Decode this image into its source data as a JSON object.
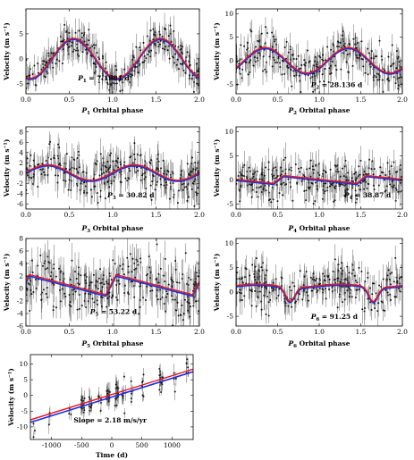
{
  "chart_data": [
    {
      "id": "p1",
      "type": "scatter",
      "ylabel": "Velocity  (m s⁻¹)",
      "xlabel": "P1 Orbital phase",
      "xlabel_main": "P",
      "xlabel_sub": "1",
      "xlabel_rest": "  Orbital  phase",
      "annotation_main": "P",
      "annotation_sub": "1",
      "annotation_rest": " = 7.1981 d",
      "xlim": [
        0,
        2
      ],
      "ylim": [
        -7,
        10
      ],
      "xticks": [
        0.0,
        0.5,
        1.0,
        1.5,
        2.0
      ],
      "yticks": [
        -5,
        0,
        5
      ],
      "model": {
        "shape": "sin",
        "amplitude": 4.0,
        "offset": 0.0,
        "phase": 0.3
      },
      "scatter_sd": 1.7,
      "n_points": 150
    },
    {
      "id": "p2",
      "type": "scatter",
      "ylabel": "Velocity  (m s⁻¹)",
      "xlabel": "P2 Orbital phase",
      "xlabel_main": "P",
      "xlabel_sub": "2",
      "xlabel_rest": "  Orbital  phase",
      "annotation_main": "P",
      "annotation_sub": "2",
      "annotation_rest": " = 28.136 d",
      "xlim": [
        0,
        2
      ],
      "ylim": [
        -7,
        11
      ],
      "xticks": [
        0.0,
        0.5,
        1.0,
        1.5,
        2.0
      ],
      "yticks": [
        -5,
        0,
        5,
        10
      ],
      "model": {
        "shape": "sin",
        "amplitude": 2.7,
        "offset": 0.0,
        "phase": 0.1
      },
      "scatter_sd": 2.0,
      "n_points": 150
    },
    {
      "id": "p3",
      "type": "scatter",
      "ylabel": "Velocity  (m s⁻¹)",
      "xlabel": "P3 Orbital phase",
      "xlabel_main": "P",
      "xlabel_sub": "3",
      "xlabel_rest": "  Orbital  phase",
      "annotation_main": "P",
      "annotation_sub": "3",
      "annotation_rest": " = 30.82 d",
      "xlim": [
        0,
        2
      ],
      "ylim": [
        -7,
        9
      ],
      "xticks": [
        0.0,
        0.5,
        1.0,
        1.5,
        2.0
      ],
      "yticks": [
        -6,
        -4,
        -2,
        0,
        2,
        4,
        6,
        8
      ],
      "model": {
        "shape": "sin",
        "amplitude": 1.5,
        "offset": 0.0,
        "phase": 0.0
      },
      "scatter_sd": 2.0,
      "n_points": 150
    },
    {
      "id": "p4",
      "type": "scatter",
      "ylabel": "Velocity  (m s⁻¹)",
      "xlabel": "P4 Orbital phase",
      "xlabel_main": "P",
      "xlabel_sub": "4",
      "xlabel_rest": "  Orbital  phase",
      "annotation_main": "P",
      "annotation_sub": "4",
      "annotation_rest": " = 38.87 d",
      "xlim": [
        0,
        2
      ],
      "ylim": [
        -6,
        11
      ],
      "xticks": [
        0.0,
        0.5,
        1.0,
        1.5,
        2.0
      ],
      "yticks": [
        -5,
        0,
        5,
        10
      ],
      "model": {
        "shape": "sawtooth",
        "amplitude": 1.0,
        "offset": 0.0,
        "phase": 0.45
      },
      "scatter_sd": 2.0,
      "n_points": 150
    },
    {
      "id": "p5",
      "type": "scatter",
      "ylabel": "Velocity  (m s⁻¹)",
      "xlabel": "P5 Orbital phase",
      "xlabel_main": "P",
      "xlabel_sub": "5",
      "xlabel_rest": "  Orbital  phase",
      "annotation_main": "P",
      "annotation_sub": "5",
      "annotation_rest": " = 53.22 d",
      "xlim": [
        0,
        2
      ],
      "ylim": [
        -6,
        8
      ],
      "xticks": [
        0.0,
        0.5,
        1.0,
        1.5,
        2.0
      ],
      "yticks": [
        -6,
        -4,
        -2,
        0,
        2,
        4,
        6,
        8
      ],
      "model": {
        "shape": "sawtooth",
        "amplitude": 2.0,
        "offset": 0.5,
        "phase": 0.92
      },
      "scatter_sd": 2.0,
      "n_points": 150
    },
    {
      "id": "p6",
      "type": "scatter",
      "ylabel": "Velocity  (m s⁻¹)",
      "xlabel": "P6 Orbital phase",
      "xlabel_main": "P",
      "xlabel_sub": "6",
      "xlabel_rest": "  Orbital  phase",
      "annotation_main": "P",
      "annotation_sub": "6",
      "annotation_rest": " = 91.25 d",
      "xlim": [
        0,
        2
      ],
      "ylim": [
        -7,
        11
      ],
      "xticks": [
        0.0,
        0.5,
        1.0,
        1.5,
        2.0
      ],
      "yticks": [
        -5,
        0,
        5,
        10
      ],
      "model": {
        "shape": "dip",
        "amplitude": 3.0,
        "offset": 1.2,
        "phase": 0.65
      },
      "scatter_sd": 2.0,
      "n_points": 150
    },
    {
      "id": "trend",
      "type": "scatter",
      "ylabel": "Velocity  (m s⁻¹)",
      "xlabel": "Time  (d)",
      "xlabel_main": "Time  (d)",
      "xlabel_sub": "",
      "xlabel_rest": "",
      "annotation_main": "Slope = 2.18 m/s/yr",
      "annotation_sub": "",
      "annotation_rest": "",
      "xlim": [
        -1350,
        1350
      ],
      "ylim": [
        -14,
        13
      ],
      "xticks": [
        -1000,
        -500,
        0,
        500,
        1000
      ],
      "yticks": [
        -10,
        -5,
        0,
        5,
        10
      ],
      "line": {
        "slope_per_day": 0.00597,
        "intercept": 0.0
      },
      "clusters": [
        {
          "x": -1290,
          "n": 3,
          "y": -9
        },
        {
          "x": -1050,
          "n": 3,
          "y": -7
        },
        {
          "x": -700,
          "n": 3,
          "y": -4
        },
        {
          "x": -480,
          "n": 18,
          "y": -3
        },
        {
          "x": -360,
          "n": 8,
          "y": -2
        },
        {
          "x": -200,
          "n": 6,
          "y": -1.5
        },
        {
          "x": -60,
          "n": 18,
          "y": -0.5
        },
        {
          "x": 80,
          "n": 18,
          "y": 0.5
        },
        {
          "x": 200,
          "n": 8,
          "y": 1
        },
        {
          "x": 350,
          "n": 6,
          "y": 2
        },
        {
          "x": 520,
          "n": 6,
          "y": 3
        },
        {
          "x": 820,
          "n": 14,
          "y": 5
        },
        {
          "x": 1040,
          "n": 4,
          "y": 6
        },
        {
          "x": 1260,
          "n": 6,
          "y": 8
        }
      ],
      "scatter_sd": 2.0
    }
  ],
  "colors": {
    "fit_red": "#e8141e",
    "fit_blue": "#1c2fe0",
    "points": "#111111",
    "error_bars": "#555555"
  }
}
